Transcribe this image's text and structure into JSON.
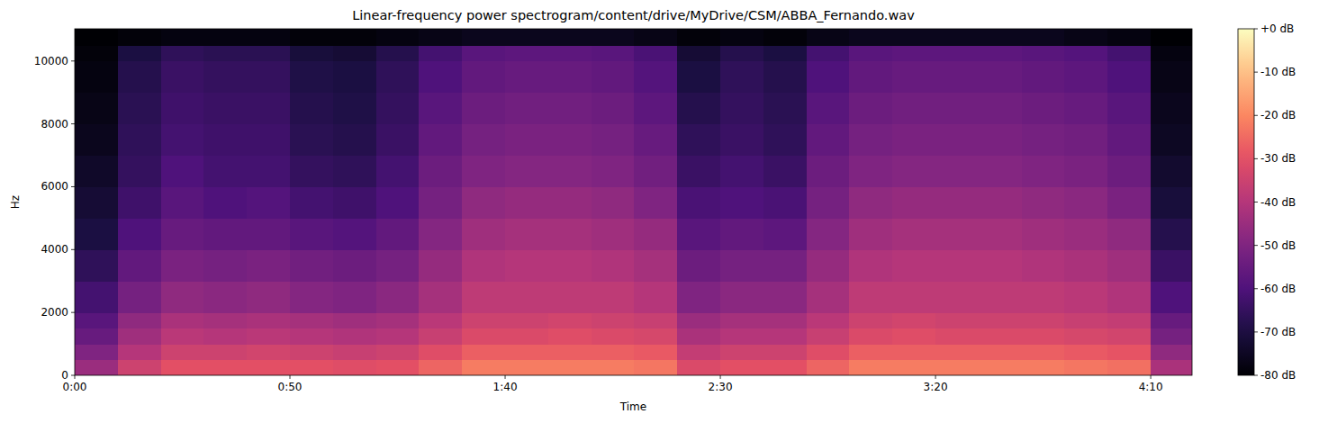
{
  "chart_data": {
    "type": "heatmap",
    "title": "Linear-frequency power spectrogram/content/drive/MyDrive/CSM/ABBA_Fernando.wav",
    "x_label": "Time",
    "y_label": "Hz",
    "xlim": [
      0,
      259.6
    ],
    "ylim": [
      0,
      11025
    ],
    "xticks": [
      {
        "value": 0,
        "label": "0:00"
      },
      {
        "value": 50,
        "label": "0:50"
      },
      {
        "value": 100,
        "label": "1:40"
      },
      {
        "value": 150,
        "label": "2:30"
      },
      {
        "value": 200,
        "label": "3:20"
      },
      {
        "value": 250,
        "label": "4:10"
      }
    ],
    "yticks": [
      0,
      2000,
      4000,
      6000,
      8000,
      10000
    ],
    "x_bins": [
      0,
      10,
      20,
      30,
      40,
      50,
      60,
      70,
      80,
      90,
      100,
      110,
      120,
      130,
      140,
      150,
      160,
      170,
      180,
      190,
      200,
      210,
      220,
      230,
      240,
      250,
      259.6
    ],
    "y_bins": [
      0,
      500,
      1000,
      1500,
      2000,
      3000,
      4000,
      5000,
      6000,
      7000,
      8000,
      9000,
      10000,
      10500,
      11025
    ],
    "values": [
      [
        -45,
        -35,
        -30,
        -30,
        -30,
        -30,
        -31,
        -30,
        -26,
        -22,
        -22,
        -22,
        -22,
        -23,
        -32,
        -30,
        -30,
        -26,
        -22,
        -22,
        -22,
        -22,
        -22,
        -23,
        -24,
        -42
      ],
      [
        -50,
        -40,
        -35,
        -35,
        -34,
        -35,
        -36,
        -35,
        -31,
        -27,
        -27,
        -27,
        -27,
        -28,
        -37,
        -35,
        -35,
        -31,
        -27,
        -27,
        -27,
        -27,
        -27,
        -28,
        -29,
        -47
      ],
      [
        -55,
        -44,
        -39,
        -40,
        -39,
        -40,
        -41,
        -40,
        -36,
        -32,
        -32,
        -31,
        -32,
        -33,
        -42,
        -40,
        -40,
        -36,
        -32,
        -31,
        -32,
        -32,
        -32,
        -33,
        -34,
        -52
      ],
      [
        -58,
        -47,
        -42,
        -43,
        -42,
        -43,
        -44,
        -43,
        -39,
        -35,
        -35,
        -34,
        -35,
        -36,
        -45,
        -43,
        -43,
        -39,
        -35,
        -34,
        -35,
        -35,
        -35,
        -36,
        -37,
        -55
      ],
      [
        -62,
        -52,
        -47,
        -48,
        -47,
        -49,
        -50,
        -48,
        -43,
        -38,
        -38,
        -38,
        -38,
        -40,
        -50,
        -48,
        -48,
        -43,
        -38,
        -38,
        -38,
        -38,
        -38,
        -39,
        -41,
        -60
      ],
      [
        -66,
        -56,
        -51,
        -52,
        -51,
        -53,
        -54,
        -52,
        -46,
        -41,
        -40,
        -40,
        -41,
        -43,
        -54,
        -52,
        -52,
        -46,
        -41,
        -40,
        -40,
        -40,
        -41,
        -42,
        -44,
        -64
      ],
      [
        -70,
        -60,
        -55,
        -56,
        -56,
        -58,
        -59,
        -56,
        -49,
        -44,
        -43,
        -43,
        -44,
        -46,
        -58,
        -56,
        -57,
        -49,
        -44,
        -43,
        -43,
        -43,
        -44,
        -45,
        -47,
        -68
      ],
      [
        -72,
        -63,
        -58,
        -60,
        -59,
        -62,
        -63,
        -60,
        -52,
        -47,
        -46,
        -46,
        -47,
        -50,
        -61,
        -60,
        -61,
        -52,
        -47,
        -46,
        -46,
        -46,
        -47,
        -48,
        -51,
        -71
      ],
      [
        -74,
        -65,
        -60,
        -62,
        -62,
        -65,
        -66,
        -62,
        -54,
        -50,
        -49,
        -49,
        -50,
        -53,
        -64,
        -62,
        -64,
        -54,
        -50,
        -49,
        -49,
        -49,
        -50,
        -51,
        -54,
        -73
      ],
      [
        -76,
        -66,
        -62,
        -63,
        -63,
        -67,
        -68,
        -64,
        -56,
        -52,
        -51,
        -51,
        -52,
        -55,
        -66,
        -64,
        -66,
        -56,
        -52,
        -51,
        -51,
        -51,
        -52,
        -53,
        -56,
        -75
      ],
      [
        -77,
        -67,
        -63,
        -64,
        -64,
        -68,
        -69,
        -65,
        -58,
        -54,
        -53,
        -53,
        -54,
        -57,
        -68,
        -65,
        -67,
        -58,
        -54,
        -53,
        -53,
        -53,
        -54,
        -55,
        -58,
        -76
      ],
      [
        -78,
        -68,
        -64,
        -65,
        -65,
        -69,
        -70,
        -66,
        -60,
        -56,
        -55,
        -55,
        -56,
        -59,
        -70,
        -66,
        -68,
        -60,
        -56,
        -55,
        -55,
        -55,
        -56,
        -57,
        -60,
        -77
      ],
      [
        -79,
        -70,
        -66,
        -67,
        -67,
        -71,
        -72,
        -68,
        -62,
        -58,
        -57,
        -57,
        -58,
        -61,
        -72,
        -68,
        -70,
        -62,
        -58,
        -57,
        -57,
        -57,
        -58,
        -59,
        -62,
        -78
      ],
      [
        -80,
        -79,
        -78,
        -78,
        -78,
        -79,
        -79,
        -78,
        -77,
        -76,
        -76,
        -76,
        -76,
        -77,
        -79,
        -78,
        -79,
        -77,
        -76,
        -76,
        -76,
        -76,
        -76,
        -77,
        -78,
        -80
      ]
    ],
    "colorbar": {
      "range": [
        -80,
        0
      ],
      "ticks": [
        {
          "value": 0,
          "label": "+0 dB"
        },
        {
          "value": -10,
          "label": "-10 dB"
        },
        {
          "value": -20,
          "label": "-20 dB"
        },
        {
          "value": -30,
          "label": "-30 dB"
        },
        {
          "value": -40,
          "label": "-40 dB"
        },
        {
          "value": -50,
          "label": "-50 dB"
        },
        {
          "value": -60,
          "label": "-60 dB"
        },
        {
          "value": -70,
          "label": "-70 dB"
        },
        {
          "value": -80,
          "label": "-80 dB"
        }
      ]
    }
  }
}
